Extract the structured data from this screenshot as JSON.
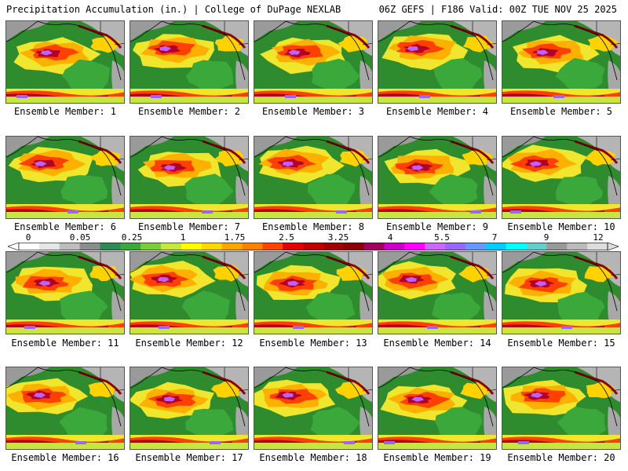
{
  "header": {
    "title": "Precipitation Accumulation (in.) | College of DuPage NEXLAB",
    "valid": "06Z GEFS | F186 Valid: 00Z TUE NOV 25 2025"
  },
  "colorbar": {
    "ticks": [
      "0",
      "0.05",
      "0.25",
      "1",
      "1.75",
      "2.5",
      "3.25",
      "4",
      "5.5",
      "7",
      "9",
      "12"
    ],
    "colors": [
      "#ffffff",
      "#e6e6e6",
      "#bdbdbd",
      "#8c8c8c",
      "#2e8b57",
      "#3aa83a",
      "#7ccd3c",
      "#c8e640",
      "#ffff00",
      "#ffd700",
      "#ffa500",
      "#ff7f00",
      "#ff4500",
      "#e60000",
      "#c00000",
      "#a00000",
      "#8b0000",
      "#a00060",
      "#c800c8",
      "#ff00ff",
      "#cc66ff",
      "#9966ff",
      "#6699ff",
      "#00ccff",
      "#00ffff",
      "#66cccc",
      "#999999",
      "#bbbbbb",
      "#dddddd"
    ]
  },
  "panels": [
    {
      "label": "Ensemble Member: 1"
    },
    {
      "label": "Ensemble Member: 2"
    },
    {
      "label": "Ensemble Member: 3"
    },
    {
      "label": "Ensemble Member: 4"
    },
    {
      "label": "Ensemble Member: 5"
    },
    {
      "label": "Ensemble Member: 6"
    },
    {
      "label": "Ensemble Member: 7"
    },
    {
      "label": "Ensemble Member: 8"
    },
    {
      "label": "Ensemble Member: 9"
    },
    {
      "label": "Ensemble Member: 10"
    },
    {
      "label": "Ensemble Member: 11"
    },
    {
      "label": "Ensemble Member: 12"
    },
    {
      "label": "Ensemble Member: 13"
    },
    {
      "label": "Ensemble Member: 14"
    },
    {
      "label": "Ensemble Member: 15"
    },
    {
      "label": "Ensemble Member: 16"
    },
    {
      "label": "Ensemble Member: 17"
    },
    {
      "label": "Ensemble Member: 18"
    },
    {
      "label": "Ensemble Member: 19"
    },
    {
      "label": "Ensemble Member: 20"
    }
  ]
}
